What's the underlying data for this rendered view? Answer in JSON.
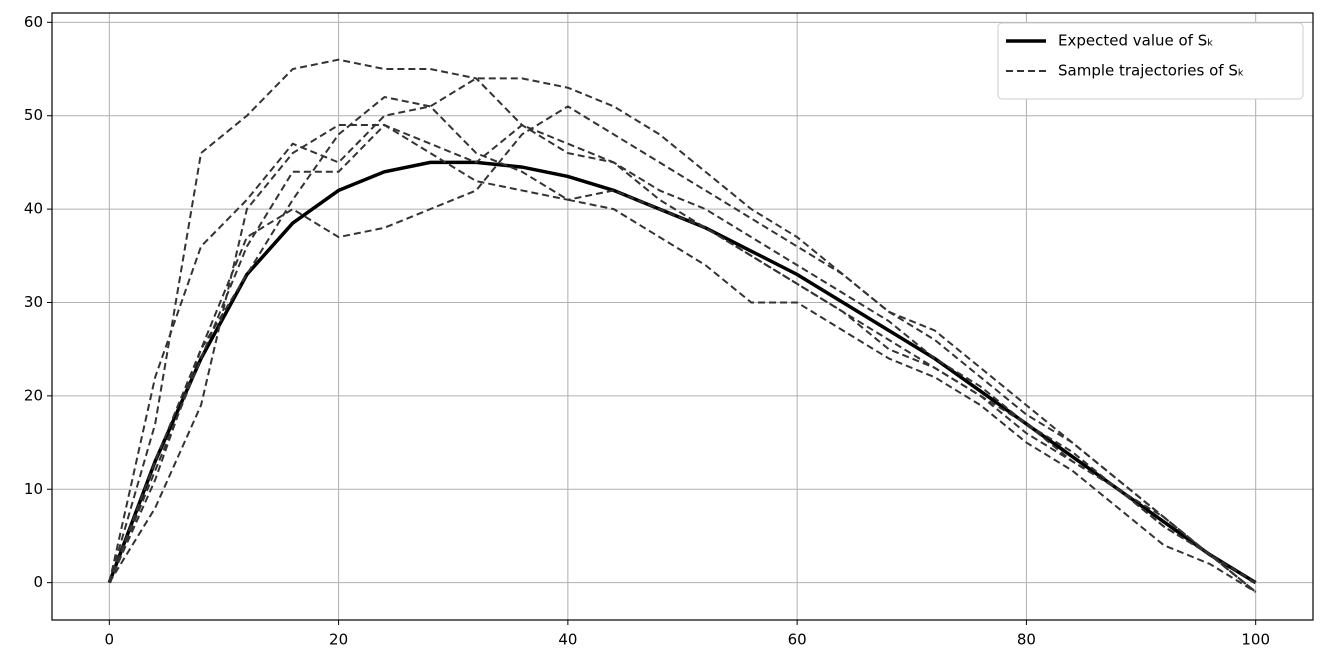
{
  "chart_data": {
    "type": "line",
    "x": [
      0,
      4,
      8,
      12,
      16,
      20,
      24,
      28,
      32,
      36,
      40,
      44,
      48,
      52,
      56,
      60,
      64,
      68,
      72,
      76,
      80,
      84,
      88,
      92,
      96,
      100
    ],
    "series": [
      {
        "name": "Expected value of Sₖ",
        "color": "#000000",
        "style": "solid",
        "values": [
          0,
          13,
          24,
          33,
          38.5,
          42,
          44,
          45,
          45,
          44.5,
          43.5,
          42,
          40,
          38,
          35.5,
          33,
          30,
          27,
          24,
          20.5,
          17,
          13.5,
          10,
          6.5,
          3,
          0
        ]
      },
      {
        "name": "Sample trajectories of Sₖ",
        "color": "#333333",
        "style": "dashed",
        "values": [
          0,
          22,
          36,
          41,
          47,
          45,
          50,
          51,
          54,
          54,
          53,
          51,
          48,
          44,
          40,
          37,
          33,
          29,
          26,
          22,
          18,
          15,
          11,
          7,
          3,
          -1
        ]
      },
      {
        "color": "#333333",
        "style": "dashed",
        "values": [
          0,
          17,
          46,
          50,
          55,
          56,
          55,
          55,
          54,
          49,
          46,
          45,
          42,
          40,
          37,
          34,
          31,
          28,
          24,
          21,
          17,
          14,
          10,
          6,
          3,
          -1
        ]
      },
      {
        "color": "#333333",
        "style": "dashed",
        "values": [
          0,
          8,
          19,
          40,
          46,
          49,
          49,
          47,
          45,
          49,
          47,
          45,
          41,
          38,
          35,
          32,
          29,
          26,
          23,
          20,
          16,
          13,
          10,
          6,
          3,
          -1
        ]
      },
      {
        "color": "#333333",
        "style": "dashed",
        "values": [
          0,
          13,
          25,
          37,
          40,
          37,
          38,
          40,
          42,
          48,
          51,
          48,
          45,
          42,
          39,
          36,
          33,
          29,
          27,
          23,
          19,
          15,
          11,
          7,
          3,
          0
        ]
      },
      {
        "color": "#333333",
        "style": "dashed",
        "values": [
          0,
          11,
          25,
          33,
          41,
          48,
          52,
          51,
          46,
          44,
          41,
          40,
          37,
          34,
          30,
          30,
          27,
          24,
          22,
          19,
          15,
          12,
          8,
          4,
          2,
          -1
        ]
      },
      {
        "color": "#333333",
        "style": "dashed",
        "values": [
          0,
          12,
          24,
          36,
          44,
          44,
          49,
          46,
          43,
          42,
          41,
          42,
          40,
          38,
          35,
          32,
          29,
          25,
          23,
          20,
          17,
          13,
          10,
          7,
          3,
          -1
        ]
      }
    ],
    "xlim": [
      -5,
      105
    ],
    "xticks": [
      0,
      20,
      40,
      60,
      80,
      100
    ],
    "ylim": [
      -4,
      61
    ],
    "yticks": [
      0,
      10,
      20,
      30,
      40,
      50,
      60
    ],
    "grid": true,
    "legend": "upper right"
  }
}
